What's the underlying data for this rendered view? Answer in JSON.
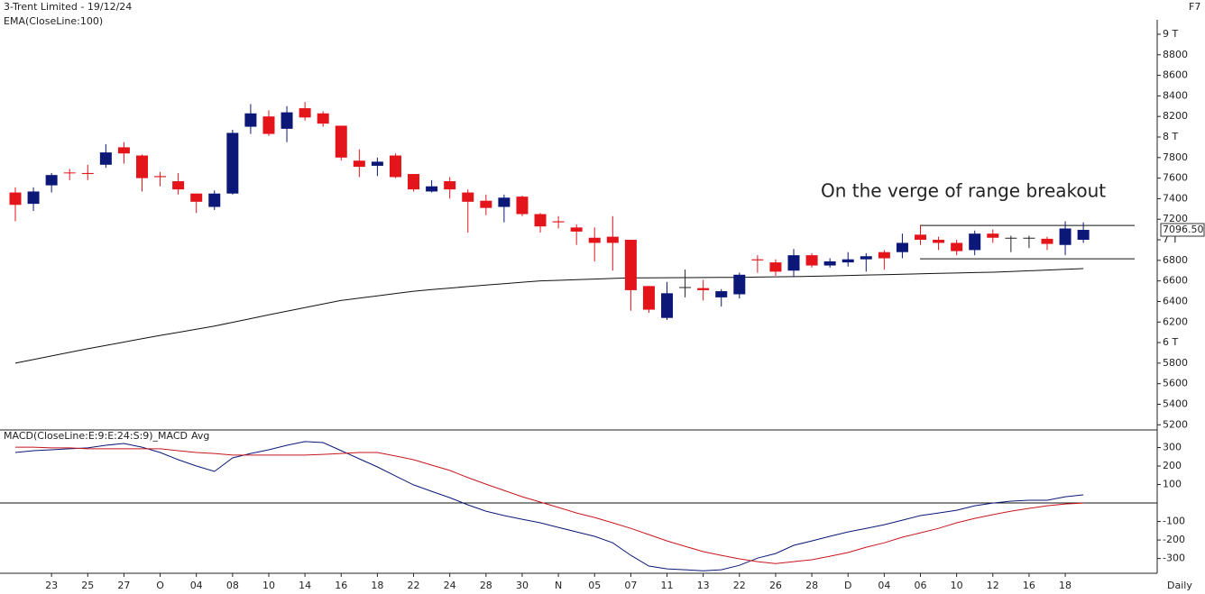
{
  "chart_data": [
    {
      "type": "candlestick",
      "title": "3-Trent Limited - 19/12/24",
      "categories": [
        null,
        null,
        "23",
        null,
        "25",
        null,
        "27",
        null,
        "O",
        null,
        "04",
        null,
        "08",
        null,
        "10",
        null,
        "14",
        null,
        "16",
        null,
        "18",
        null,
        "22",
        null,
        "24",
        null,
        "28",
        null,
        "30",
        null,
        "N",
        null,
        "05",
        null,
        "07",
        null,
        "11",
        null,
        "13",
        null,
        "22",
        null,
        "26",
        null,
        "28",
        null,
        "D",
        null,
        "04",
        null,
        "06",
        null,
        "10",
        null,
        "12",
        null,
        "16",
        null,
        "18",
        null
      ],
      "open": [
        7460,
        7350,
        7530,
        7655,
        7650,
        7730,
        7900,
        7820,
        7620,
        7570,
        7450,
        7320,
        7450,
        8100,
        8200,
        8080,
        8280,
        8230,
        8110,
        7770,
        7720,
        7820,
        7640,
        7470,
        7570,
        7460,
        7380,
        7320,
        7420,
        7250,
        7180,
        7120,
        7020,
        7030,
        7000,
        6550,
        6240,
        6540,
        6530,
        6440,
        6470,
        6810,
        6780,
        6700,
        6850,
        6750,
        6780,
        6810,
        6880,
        6880,
        7050,
        7000,
        6970,
        6900,
        7060,
        7020,
        7020,
        7010,
        6950,
        7000
      ],
      "high": [
        7510,
        7510,
        7650,
        7690,
        7730,
        7930,
        7950,
        7830,
        7660,
        7650,
        7450,
        7480,
        8070,
        8320,
        8260,
        8300,
        8340,
        8250,
        8110,
        7880,
        7800,
        7840,
        7640,
        7580,
        7610,
        7490,
        7440,
        7440,
        7430,
        7260,
        7230,
        7150,
        7120,
        7230,
        7000,
        6550,
        6590,
        6710,
        6610,
        6520,
        6680,
        6850,
        6810,
        6910,
        6870,
        6820,
        6880,
        6870,
        6900,
        7060,
        7140,
        7030,
        7000,
        7090,
        7100,
        7040,
        7040,
        7030,
        7180,
        7170
      ],
      "low": [
        7180,
        7280,
        7460,
        7580,
        7580,
        7700,
        7740,
        7470,
        7520,
        7440,
        7260,
        7290,
        7440,
        8030,
        8010,
        7950,
        8160,
        8100,
        7770,
        7610,
        7620,
        7600,
        7470,
        7460,
        7400,
        7070,
        7240,
        7170,
        7230,
        7070,
        7110,
        6950,
        6790,
        6700,
        6310,
        6290,
        6220,
        6440,
        6410,
        6350,
        6430,
        6680,
        6650,
        6640,
        6730,
        6730,
        6740,
        6690,
        6710,
        6820,
        6950,
        6900,
        6850,
        6850,
        6970,
        6880,
        6920,
        6900,
        6850,
        6970
      ],
      "close": [
        7340,
        7470,
        7630,
        7650,
        7640,
        7850,
        7840,
        7600,
        7610,
        7490,
        7370,
        7450,
        8040,
        8230,
        8030,
        8240,
        8190,
        8130,
        7800,
        7710,
        7760,
        7610,
        7490,
        7520,
        7490,
        7370,
        7310,
        7410,
        7250,
        7130,
        7170,
        7080,
        6970,
        6970,
        6510,
        6320,
        6480,
        6540,
        6510,
        6500,
        6660,
        6800,
        6690,
        6850,
        6750,
        6790,
        6810,
        6840,
        6820,
        6970,
        7000,
        6970,
        6890,
        7060,
        7020,
        7020,
        7020,
        6960,
        7110,
        7096.5
      ],
      "up_color": "#0b1877",
      "down_color": "#e4141b",
      "doji_color": "#222222",
      "series": [
        {
          "name": "EMA(CloseLine:100)",
          "color": "#111111",
          "values": [
            5800,
            5835,
            5870,
            5905,
            5940,
            5972,
            6005,
            6038,
            6070,
            6100,
            6130,
            6160,
            6197,
            6233,
            6270,
            6305,
            6340,
            6375,
            6410,
            6432,
            6455,
            6478,
            6500,
            6515,
            6530,
            6545,
            6560,
            6573,
            6587,
            6600,
            6606,
            6612,
            6618,
            6624,
            6630,
            6630,
            6631,
            6632,
            6633,
            6634,
            6635,
            6637,
            6640,
            6642,
            6645,
            6649,
            6653,
            6657,
            6661,
            6665,
            6669,
            6673,
            6677,
            6681,
            6685,
            6692,
            6699,
            6706,
            6713,
            6720
          ]
        }
      ],
      "range_lines": [
        7140,
        6815
      ],
      "annotation": "On the verge of range breakout",
      "last_price": {
        "value": 7096.5,
        "label": "7096.50"
      },
      "ylim": [
        5150,
        9140
      ],
      "yticks": [
        {
          "value": 9000,
          "label": "9 T"
        },
        8800,
        8600,
        8400,
        8200,
        {
          "value": 8000,
          "label": "8 T"
        },
        7800,
        7600,
        7400,
        7200,
        {
          "value": 7000,
          "label": "7 T"
        },
        6800,
        6600,
        6400,
        6200,
        {
          "value": 6000,
          "label": "6 T"
        },
        5800,
        5600,
        5400,
        5200
      ]
    },
    {
      "type": "line",
      "series": [
        {
          "name": "MACD(CloseLine:E:9:E:24:S:9)_MACD",
          "color": "#0b1877",
          "values": [
            273,
            283,
            288,
            293,
            298,
            312,
            322,
            302,
            273,
            234,
            200,
            171,
            244,
            268,
            288,
            312,
            332,
            327,
            283,
            239,
            195,
            146,
            98,
            63,
            29,
            -10,
            -44,
            -68,
            -88,
            -107,
            -132,
            -156,
            -180,
            -215,
            -283,
            -341,
            -356,
            -361,
            -366,
            -361,
            -337,
            -298,
            -273,
            -229,
            -205,
            -180,
            -156,
            -137,
            -117,
            -93,
            -68,
            -54,
            -39,
            -15,
            0,
            10,
            15,
            15,
            34,
            44
          ]
        },
        {
          "name": "Avg",
          "color": "#c8161d",
          "values": [
            302,
            302,
            298,
            298,
            293,
            293,
            293,
            293,
            293,
            283,
            273,
            268,
            259,
            259,
            259,
            259,
            259,
            263,
            268,
            273,
            273,
            254,
            234,
            205,
            176,
            137,
            102,
            68,
            34,
            5,
            -24,
            -54,
            -78,
            -107,
            -137,
            -171,
            -205,
            -234,
            -263,
            -283,
            -302,
            -317,
            -327,
            -317,
            -307,
            -288,
            -268,
            -239,
            -215,
            -185,
            -161,
            -137,
            -107,
            -83,
            -63,
            -44,
            -29,
            -15,
            -5,
            0
          ]
        }
      ],
      "hlines": [
        0
      ],
      "ylim": [
        -375,
        356
      ],
      "yticks": [
        300,
        200,
        100,
        -100,
        -200,
        -300
      ]
    }
  ],
  "corner_label": "F7",
  "interval": "Daily"
}
